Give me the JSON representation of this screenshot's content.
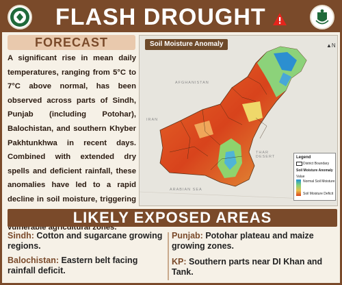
{
  "header": {
    "title": "FLASH DROUGHT",
    "left_logo": "government-emblem",
    "right_logo": "pakistan-emblem",
    "warning_icon": "warning-icon"
  },
  "forecast": {
    "label": "FORECAST",
    "text": "A significant rise in mean daily temperatures, ranging from 5°C to 7°C above normal, has been observed across parts of Sindh, Punjab (including Potohar), Balochistan, and southern Khyber Pakhtunkhwa in recent days. Combined with extended dry spells and deficient rainfall, these anomalies have led to a rapid decline in soil moisture, triggering flash drought conditions in vulnerable agricultural zones."
  },
  "map": {
    "title": "Soil Moisture Anomaly",
    "labels": [
      "AFGHANISTAN",
      "IRAN",
      "THAR DESERT",
      "ARABIAN SEA"
    ],
    "legend": {
      "title": "Legend",
      "district": "District Boundary",
      "anomaly": "Soil Moisture Anomaly",
      "value": "Value",
      "high": "Normal Soil Moisture",
      "low": "Soil Moisture Deficit"
    },
    "colors": {
      "high": "#1e8fd6",
      "mid": "#7fd07a",
      "low": "#d8431c"
    }
  },
  "exposed": {
    "label": "LIKELY EXPOSED AREAS",
    "items": [
      {
        "region": "Sindh:",
        "text": " Cotton and sugarcane growing regions."
      },
      {
        "region": "Punjab:",
        "text": " Potohar plateau and maize growing zones."
      },
      {
        "region": "Balochistan:",
        "text": " Eastern belt facing rainfall deficit."
      },
      {
        "region": "KP:",
        "text": " Southern parts near DI Khan and Tank."
      }
    ]
  }
}
